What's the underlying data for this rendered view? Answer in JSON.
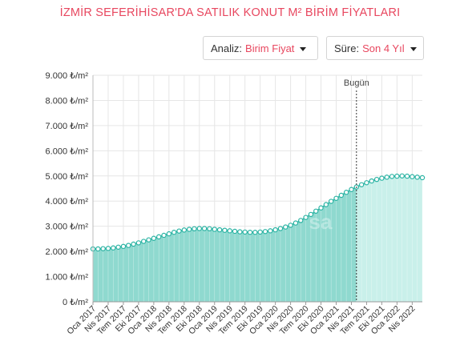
{
  "header": {
    "title": "İZMİR SEFERİHİSAR'DA SATILIK KONUT M² BİRİM FİYATLARI"
  },
  "controls": {
    "analiz_label": "Analiz:",
    "analiz_value": "Birim Fiyat",
    "sure_label": "Süre:",
    "sure_value": "Son 4 Yıl"
  },
  "colors": {
    "accent": "#e8475f",
    "line": "#2ab3a3",
    "area_past": "#8fd9cf",
    "area_future": "#c9f0ea"
  },
  "watermark": "sa",
  "chart_data": {
    "type": "area",
    "title": "İZMİR SEFERİHİSAR'DA SATILIK KONUT M² BİRİM FİYATLARI",
    "today_label": "Bugün",
    "today_index": 52,
    "ylim": [
      0,
      9000
    ],
    "yticks": [
      {
        "value": 0,
        "label": "0 ₺/m²"
      },
      {
        "value": 1000,
        "label": "1.000 ₺/m²"
      },
      {
        "value": 2000,
        "label": "2.000 ₺/m²"
      },
      {
        "value": 3000,
        "label": "3.000 ₺/m²"
      },
      {
        "value": 4000,
        "label": "4.000 ₺/m²"
      },
      {
        "value": 5000,
        "label": "5.000 ₺/m²"
      },
      {
        "value": 6000,
        "label": "6.000 ₺/m²"
      },
      {
        "value": 7000,
        "label": "7.000 ₺/m²"
      },
      {
        "value": 8000,
        "label": "8.000 ₺/m²"
      },
      {
        "value": 9000,
        "label": "9.000 ₺/m²"
      }
    ],
    "xticks": [
      {
        "index": 0,
        "label": "Oca 2017"
      },
      {
        "index": 3,
        "label": "Nis 2017"
      },
      {
        "index": 6,
        "label": "Tem 2017"
      },
      {
        "index": 9,
        "label": "Eki 2017"
      },
      {
        "index": 12,
        "label": "Oca 2018"
      },
      {
        "index": 15,
        "label": "Nis 2018"
      },
      {
        "index": 18,
        "label": "Tem 2018"
      },
      {
        "index": 21,
        "label": "Eki 2018"
      },
      {
        "index": 24,
        "label": "Oca 2019"
      },
      {
        "index": 27,
        "label": "Nis 2019"
      },
      {
        "index": 30,
        "label": "Tem 2019"
      },
      {
        "index": 33,
        "label": "Eki 2019"
      },
      {
        "index": 36,
        "label": "Oca 2020"
      },
      {
        "index": 39,
        "label": "Nis 2020"
      },
      {
        "index": 42,
        "label": "Tem 2020"
      },
      {
        "index": 45,
        "label": "Eki 2020"
      },
      {
        "index": 48,
        "label": "Oca 2021"
      },
      {
        "index": 51,
        "label": "Nis 2021"
      },
      {
        "index": 54,
        "label": "Tem 2021"
      },
      {
        "index": 57,
        "label": "Eki 2021"
      },
      {
        "index": 60,
        "label": "Oca 2022"
      },
      {
        "index": 63,
        "label": "Nis 2022"
      }
    ],
    "values": [
      2100,
      2100,
      2110,
      2120,
      2140,
      2170,
      2200,
      2240,
      2290,
      2340,
      2400,
      2460,
      2520,
      2580,
      2640,
      2700,
      2760,
      2810,
      2850,
      2880,
      2900,
      2910,
      2910,
      2900,
      2880,
      2860,
      2840,
      2820,
      2800,
      2780,
      2770,
      2760,
      2760,
      2770,
      2790,
      2820,
      2860,
      2910,
      2970,
      3040,
      3130,
      3230,
      3350,
      3470,
      3600,
      3730,
      3860,
      3990,
      4110,
      4230,
      4350,
      4460,
      4560,
      4650,
      4730,
      4800,
      4860,
      4910,
      4950,
      4980,
      4990,
      5000,
      4990,
      4970,
      4950,
      4930
    ]
  }
}
